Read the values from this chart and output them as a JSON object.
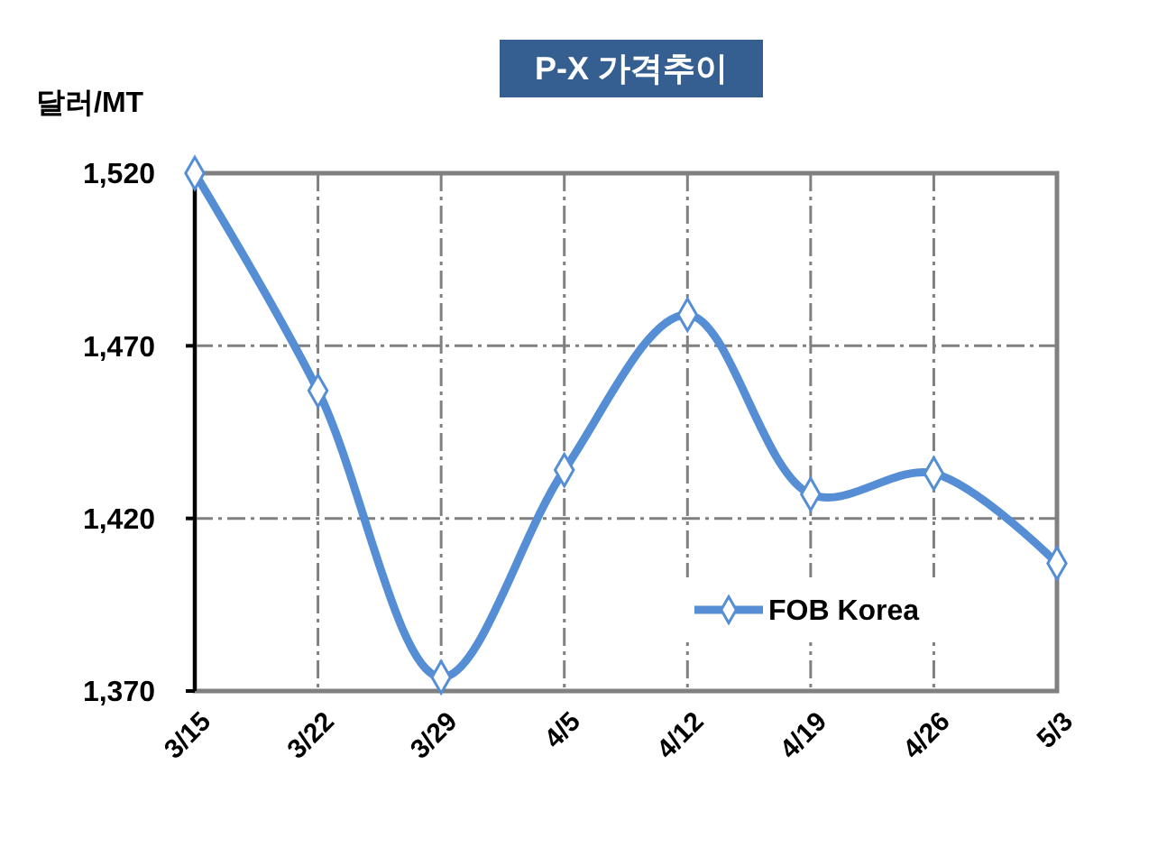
{
  "chart_data": {
    "type": "line",
    "title": "P-X 가격추이",
    "ylabel": "달러/MT",
    "categories": [
      "3/15",
      "3/22",
      "3/29",
      "4/5",
      "4/12",
      "4/19",
      "4/26",
      "5/3"
    ],
    "series": [
      {
        "name": "FOB Korea",
        "color": "#558ed5",
        "values": [
          1520,
          1457,
          1374,
          1434,
          1479,
          1427,
          1433,
          1407
        ]
      }
    ],
    "ylim": [
      1370,
      1520
    ],
    "yticks": [
      {
        "value": 1370,
        "label": "1,370"
      },
      {
        "value": 1420,
        "label": "1,420"
      },
      {
        "value": 1470,
        "label": "1,470"
      },
      {
        "value": 1520,
        "label": "1,520"
      }
    ],
    "grid": true,
    "legend": "bottom right",
    "marker": "diamond",
    "line_style": "solid"
  }
}
